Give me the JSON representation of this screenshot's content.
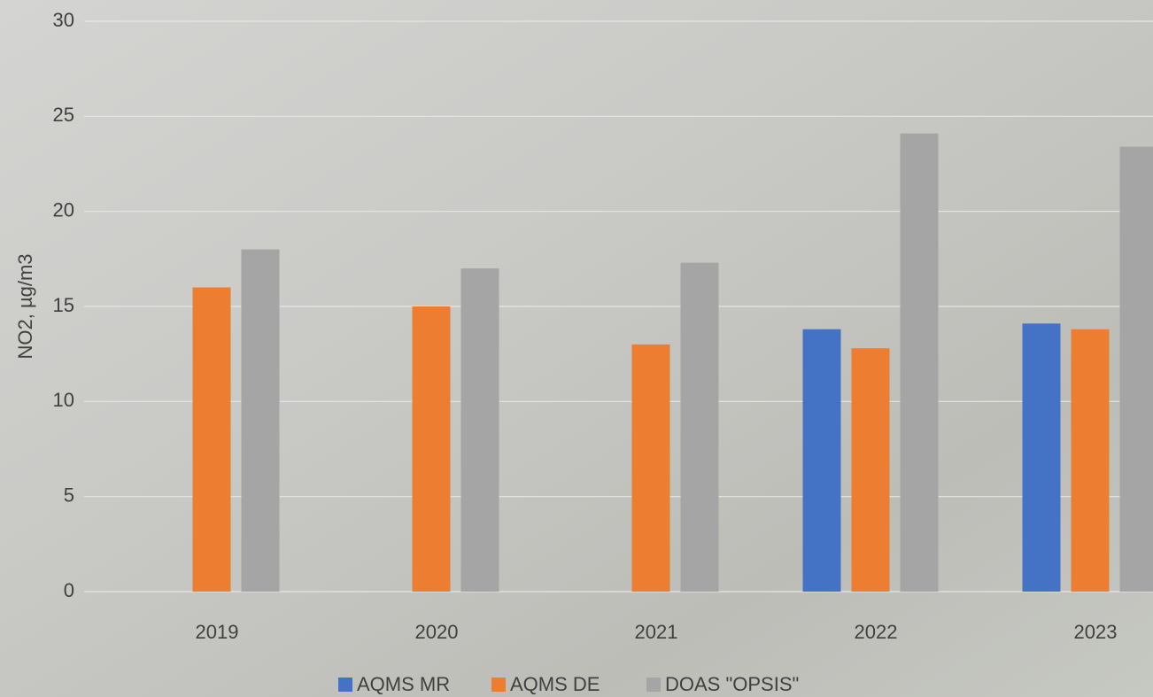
{
  "chart_data": {
    "type": "bar",
    "y_label": "NO2, µg/m3",
    "categories": [
      "2019",
      "2020",
      "2021",
      "2022",
      "2023"
    ],
    "series": [
      {
        "name": "AQMS MR",
        "color": "#4472c4",
        "values": [
          null,
          null,
          null,
          13.8,
          14.1
        ]
      },
      {
        "name": "AQMS DE",
        "color": "#ed7d31",
        "values": [
          16,
          15,
          13,
          12.8,
          13.8
        ]
      },
      {
        "name": "DOAS \"OPSIS\"",
        "color": "#a5a5a5",
        "values": [
          18,
          17,
          17.3,
          24.1,
          23.4
        ]
      }
    ],
    "ylim": [
      0,
      30
    ],
    "yticks": [
      0,
      5,
      10,
      15,
      20,
      25,
      30
    ],
    "grid": true,
    "legend": "bottom"
  }
}
